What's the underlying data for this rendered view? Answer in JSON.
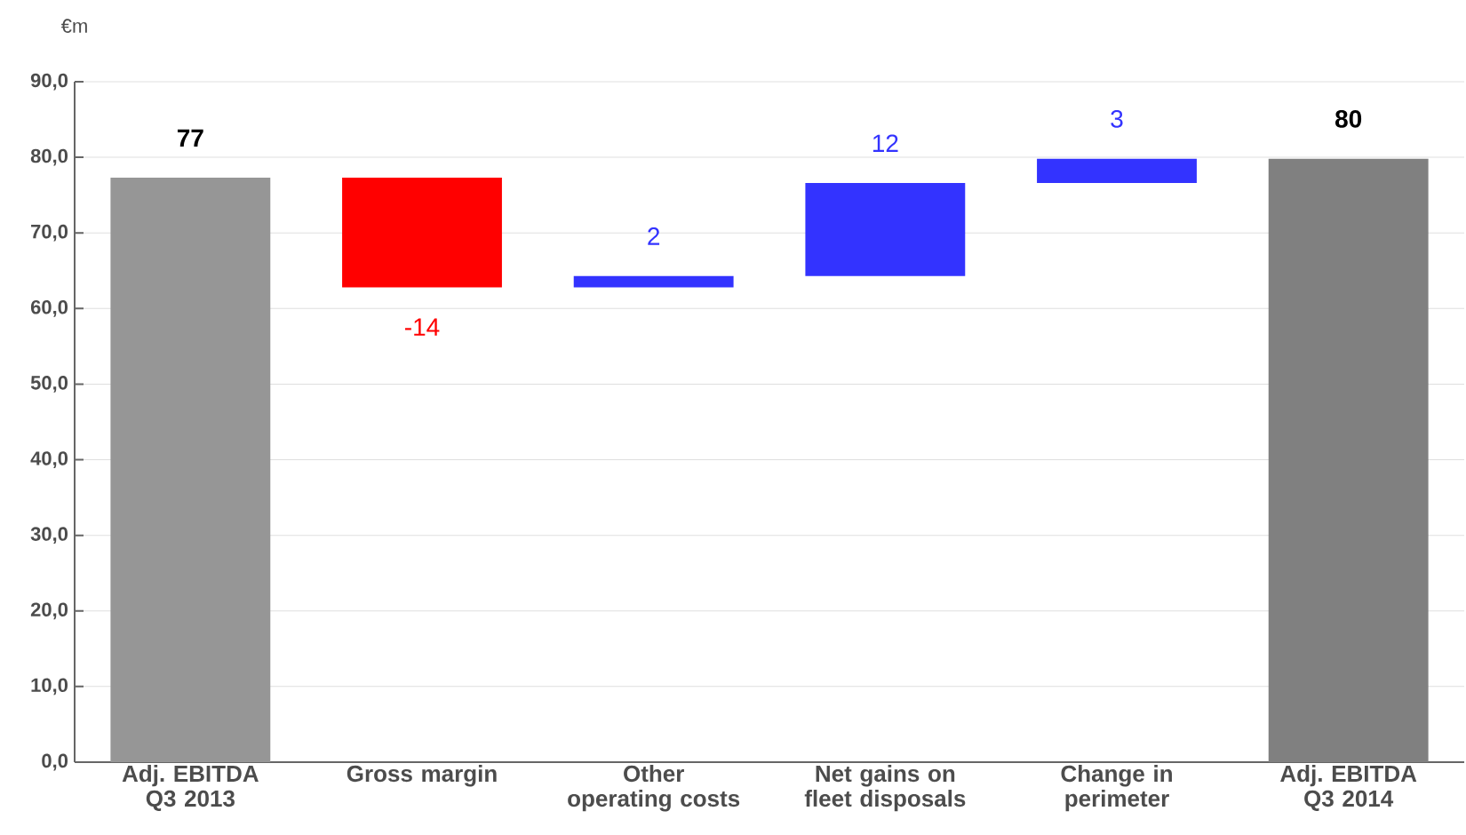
{
  "chart_data": {
    "type": "bar",
    "ylabel": "€m",
    "categories": [
      "Adj. EBITDA Q3 2013",
      "Gross margin",
      "Other operating costs",
      "Net gains on fleet disposals",
      "Change in perimeter",
      "Adj. EBITDA Q3 2014"
    ],
    "values": [
      77.3,
      -14.5,
      1.5,
      12.3,
      3.2,
      79.8
    ],
    "base": [
      0,
      77.3,
      62.8,
      64.3,
      76.6,
      0
    ],
    "colors": [
      "#969696",
      "#ff0000",
      "#3333ff",
      "#3333ff",
      "#3333ff",
      "#808080"
    ],
    "value_labels": [
      "77",
      "-14",
      "2",
      "12",
      "3",
      "80"
    ],
    "ylim": [
      0,
      90
    ],
    "yticks": [
      {
        "value": 0,
        "label": "0,0"
      },
      {
        "value": 10,
        "label": "10,0"
      },
      {
        "value": 20,
        "label": "20,0"
      },
      {
        "value": 30,
        "label": "30,0"
      },
      {
        "value": 40,
        "label": "40,0"
      },
      {
        "value": 50,
        "label": "50,0"
      },
      {
        "value": 60,
        "label": "60,0"
      },
      {
        "value": 70,
        "label": "70,0"
      },
      {
        "value": 80,
        "label": "80,0"
      },
      {
        "value": 90,
        "label": "90,0"
      }
    ],
    "grid": "y"
  }
}
